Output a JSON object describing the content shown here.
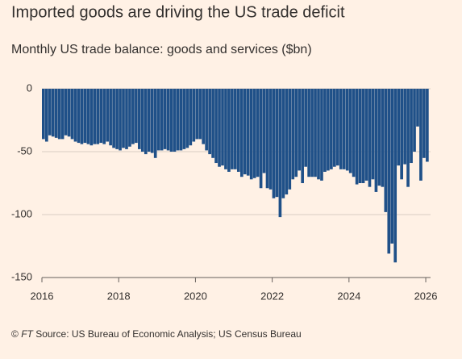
{
  "chart_data": {
    "type": "bar",
    "title": "Imported goods are driving the US trade deficit",
    "subtitle": "Monthly US trade balance: goods and services ($bn)",
    "copyright": "©",
    "publisher": "FT",
    "source": "Source: US Bureau of Economic Analysis; US Census Bureau",
    "color": "#1f5088",
    "grid": true,
    "xlim": [
      2016,
      2026.083
    ],
    "xticks": [
      2016,
      2018,
      2020,
      2022,
      2024,
      2026
    ],
    "ylim": [
      -150,
      0
    ],
    "yticks": [
      0,
      -50,
      -100,
      -150
    ],
    "x": [
      2016,
      2016.083,
      2016.167,
      2016.25,
      2016.333,
      2016.417,
      2016.5,
      2016.583,
      2016.667,
      2016.75,
      2016.833,
      2016.917,
      2017,
      2017.083,
      2017.167,
      2017.25,
      2017.333,
      2017.417,
      2017.5,
      2017.583,
      2017.667,
      2017.75,
      2017.833,
      2017.917,
      2018,
      2018.083,
      2018.167,
      2018.25,
      2018.333,
      2018.417,
      2018.5,
      2018.583,
      2018.667,
      2018.75,
      2018.833,
      2018.917,
      2019,
      2019.083,
      2019.167,
      2019.25,
      2019.333,
      2019.417,
      2019.5,
      2019.583,
      2019.667,
      2019.75,
      2019.833,
      2019.917,
      2020,
      2020.083,
      2020.167,
      2020.25,
      2020.333,
      2020.417,
      2020.5,
      2020.583,
      2020.667,
      2020.75,
      2020.833,
      2020.917,
      2021,
      2021.083,
      2021.167,
      2021.25,
      2021.333,
      2021.417,
      2021.5,
      2021.583,
      2021.667,
      2021.75,
      2021.833,
      2021.917,
      2022,
      2022.083,
      2022.167,
      2022.25,
      2022.333,
      2022.417,
      2022.5,
      2022.583,
      2022.667,
      2022.75,
      2022.833,
      2022.917,
      2023,
      2023.083,
      2023.167,
      2023.25,
      2023.333,
      2023.417,
      2023.5,
      2023.583,
      2023.667,
      2023.75,
      2023.833,
      2023.917,
      2024,
      2024.083,
      2024.167,
      2024.25,
      2024.333,
      2024.417,
      2024.5,
      2024.583,
      2024.667,
      2024.75,
      2024.833,
      2024.917,
      2025,
      2025.083,
      2025.167,
      2025.25,
      2025.333,
      2025.417,
      2025.5,
      2025.583,
      2025.667,
      2025.75,
      2025.833,
      2025.917,
      2026
    ],
    "values": [
      -40,
      -42,
      -37,
      -38,
      -39,
      -40,
      -40,
      -37,
      -38,
      -40,
      -42,
      -43,
      -44,
      -43,
      -44,
      -45,
      -44,
      -44,
      -43,
      -44,
      -42,
      -45,
      -47,
      -48,
      -49,
      -47,
      -48,
      -46,
      -44,
      -43,
      -48,
      -50,
      -52,
      -50,
      -51,
      -55,
      -49,
      -49,
      -48,
      -49,
      -50,
      -50,
      -49,
      -49,
      -48,
      -47,
      -45,
      -42,
      -40,
      -40,
      -44,
      -49,
      -52,
      -55,
      -59,
      -62,
      -61,
      -64,
      -66,
      -64,
      -64,
      -66,
      -70,
      -68,
      -69,
      -72,
      -71,
      -70,
      -79,
      -67,
      -79,
      -80,
      -87,
      -86,
      -102,
      -87,
      -84,
      -80,
      -72,
      -70,
      -65,
      -75,
      -62,
      -70,
      -70,
      -70,
      -72,
      -73,
      -66,
      -65,
      -64,
      -62,
      -61,
      -64,
      -64,
      -65,
      -67,
      -70,
      -76,
      -75,
      -75,
      -73,
      -78,
      -72,
      -82,
      -77,
      -78,
      -98,
      -131,
      -123,
      -138,
      -61,
      -72,
      -60,
      -78,
      -59,
      -50,
      -30,
      -73,
      -55,
      -58
    ]
  }
}
